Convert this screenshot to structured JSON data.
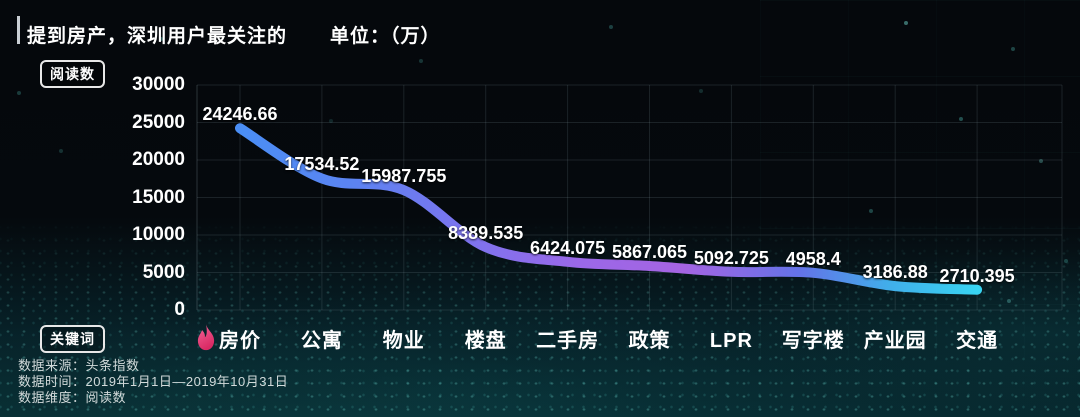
{
  "header": {
    "title": "提到房产，深圳用户最关注的",
    "unit_label": "单位：（万）"
  },
  "y_axis_badge": "阅读数",
  "x_axis_badge": "关键词",
  "footer": {
    "source": "数据来源：头条指数",
    "time": "数据时间：2019年1月1日—2019年10月31日",
    "dimension": "数据维度：阅读数"
  },
  "colors": {
    "line_gradient": [
      "#4a8ef5",
      "#5b84f2",
      "#7b74ee",
      "#9a68e8",
      "#a564e2",
      "#6373e8",
      "#41aeea",
      "#38d4f2"
    ],
    "flame_top": "#f4679a",
    "flame_bottom": "#d92a64",
    "grid_line": "rgba(160,190,200,0.14)",
    "axis_line": "rgba(180,205,215,0.22)",
    "background_teal": "#0a343a"
  },
  "chart_data": {
    "type": "line",
    "title": "提到房产，深圳用户最关注的",
    "unit": "万",
    "ylabel": "阅读数",
    "xlabel": "关键词",
    "categories": [
      "房价",
      "公寓",
      "物业",
      "楼盘",
      "二手房",
      "政策",
      "LPR",
      "写字楼",
      "产业园",
      "交通"
    ],
    "values": [
      24246.66,
      17534.52,
      15987.755,
      8389.535,
      6424.075,
      5867.065,
      5092.725,
      4958.4,
      3186.88,
      2710.395
    ],
    "ylim": [
      0,
      30000
    ],
    "yticks": [
      0,
      5000,
      10000,
      15000,
      20000,
      25000,
      30000
    ],
    "grid": true,
    "smooth": true,
    "legend_position": "none",
    "data_labels": true
  }
}
